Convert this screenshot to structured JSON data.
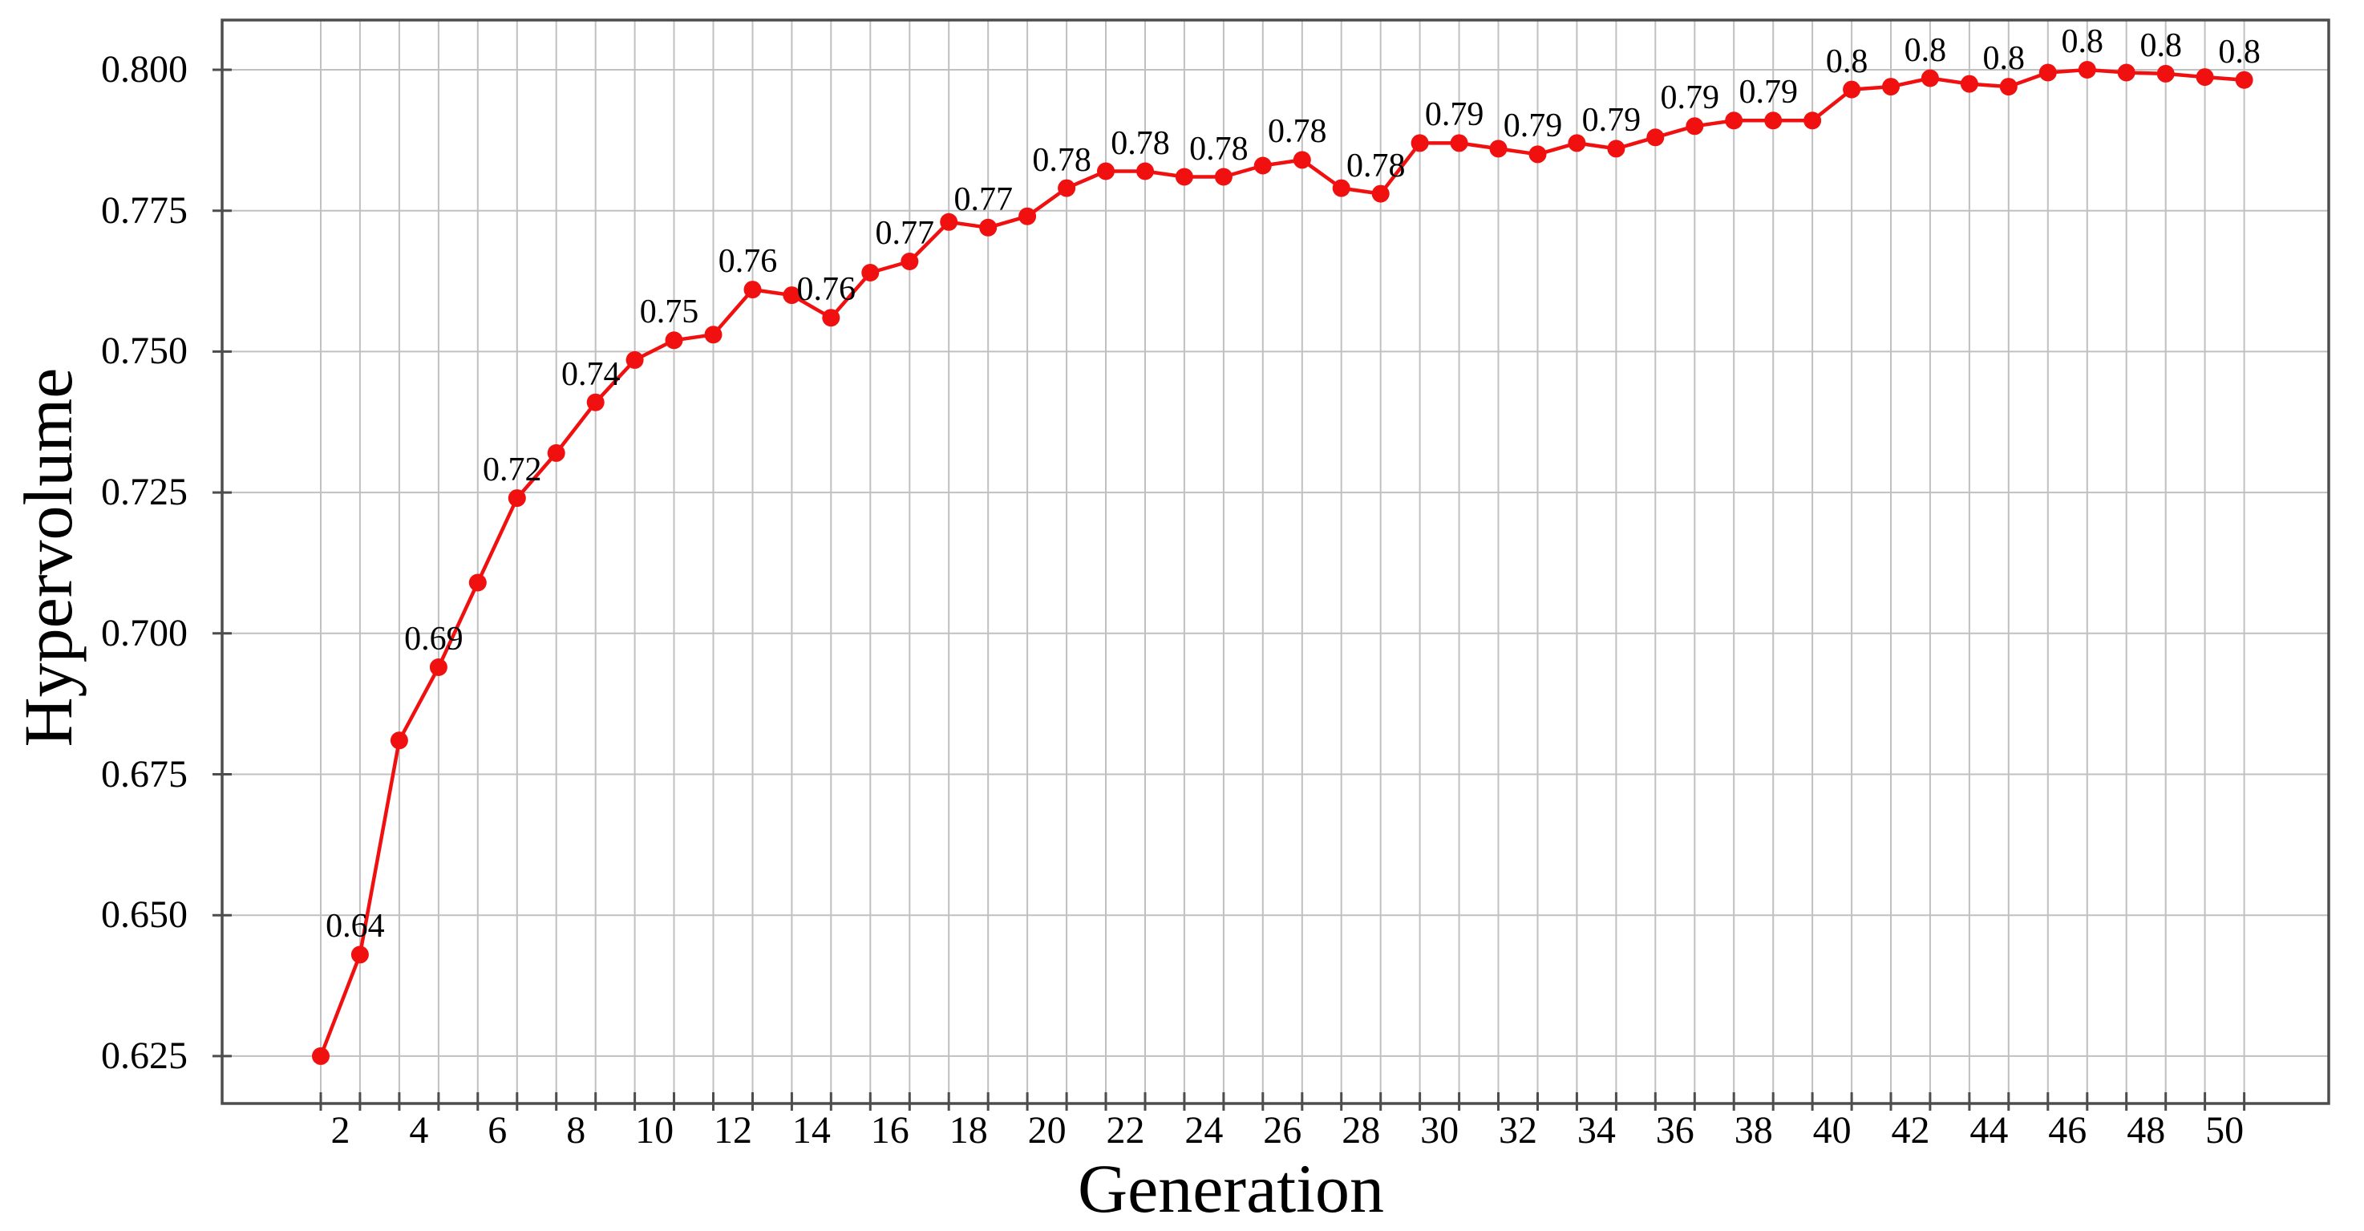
{
  "page": {
    "background": "#ffffff"
  },
  "chart_data": {
    "type": "line",
    "title": "",
    "xlabel": "Generation",
    "ylabel": "Hypervolume",
    "legend_position": "none",
    "grid": "both",
    "x_label_every": 2,
    "categories": [
      1,
      2,
      3,
      4,
      5,
      6,
      7,
      8,
      9,
      10,
      11,
      12,
      13,
      14,
      15,
      16,
      17,
      18,
      19,
      20,
      21,
      22,
      23,
      24,
      25,
      26,
      27,
      28,
      29,
      30,
      31,
      32,
      33,
      34,
      35,
      36,
      37,
      38,
      39,
      40,
      41,
      42,
      43,
      44,
      45,
      46,
      47,
      48,
      49,
      50
    ],
    "series": [
      {
        "name": "Hypervolume",
        "marker": "circle",
        "values": [
          0.625,
          0.643,
          0.681,
          0.694,
          0.709,
          0.724,
          0.732,
          0.741,
          0.7485,
          0.752,
          0.753,
          0.761,
          0.76,
          0.756,
          0.764,
          0.766,
          0.773,
          0.772,
          0.774,
          0.779,
          0.782,
          0.782,
          0.781,
          0.781,
          0.783,
          0.784,
          0.779,
          0.778,
          0.787,
          0.787,
          0.786,
          0.785,
          0.787,
          0.786,
          0.788,
          0.79,
          0.791,
          0.791,
          0.791,
          0.7965,
          0.797,
          0.7985,
          0.7975,
          0.797,
          0.7995,
          0.8,
          0.7995,
          0.7993,
          0.7987,
          0.7982
        ]
      }
    ],
    "point_labels": [
      {
        "gen": 2,
        "text": "0.64"
      },
      {
        "gen": 4,
        "text": "0.69"
      },
      {
        "gen": 6,
        "text": "0.72"
      },
      {
        "gen": 8,
        "text": "0.74"
      },
      {
        "gen": 10,
        "text": "0.75"
      },
      {
        "gen": 12,
        "text": "0.76"
      },
      {
        "gen": 14,
        "text": "0.76"
      },
      {
        "gen": 16,
        "text": "0.77"
      },
      {
        "gen": 18,
        "text": "0.77"
      },
      {
        "gen": 20,
        "text": "0.78"
      },
      {
        "gen": 22,
        "text": "0.78"
      },
      {
        "gen": 24,
        "text": "0.78"
      },
      {
        "gen": 26,
        "text": "0.78"
      },
      {
        "gen": 28,
        "text": "0.78"
      },
      {
        "gen": 30,
        "text": "0.79"
      },
      {
        "gen": 32,
        "text": "0.79"
      },
      {
        "gen": 34,
        "text": "0.79"
      },
      {
        "gen": 36,
        "text": "0.79"
      },
      {
        "gen": 38,
        "text": "0.79"
      },
      {
        "gen": 40,
        "text": "0.8"
      },
      {
        "gen": 42,
        "text": "0.8"
      },
      {
        "gen": 44,
        "text": "0.8"
      },
      {
        "gen": 46,
        "text": "0.8"
      },
      {
        "gen": 48,
        "text": "0.8"
      },
      {
        "gen": 50,
        "text": "0.8"
      }
    ],
    "y_ticks": [
      {
        "label": "0.800",
        "value": 0.8
      },
      {
        "label": "0.775",
        "value": 0.775
      },
      {
        "label": "0.750",
        "value": 0.75
      },
      {
        "label": "0.725",
        "value": 0.725
      },
      {
        "label": "0.700",
        "value": 0.7
      },
      {
        "label": "0.675",
        "value": 0.675
      },
      {
        "label": "0.650",
        "value": 0.65
      },
      {
        "label": "0.625",
        "value": 0.625
      }
    ],
    "x_tick_labels": [
      "2",
      "4",
      "6",
      "8",
      "10",
      "12",
      "14",
      "16",
      "18",
      "20",
      "22",
      "24",
      "26",
      "28",
      "30",
      "32",
      "34",
      "36",
      "38",
      "40",
      "42",
      "44",
      "46",
      "48",
      "50"
    ],
    "ylim": [
      0.6165,
      0.8088
    ],
    "colors": {
      "line": "#f11010",
      "marker": "#f11010",
      "grid": "#c0c0c0",
      "axis": "#4d4d4d",
      "text": "#000000"
    }
  }
}
